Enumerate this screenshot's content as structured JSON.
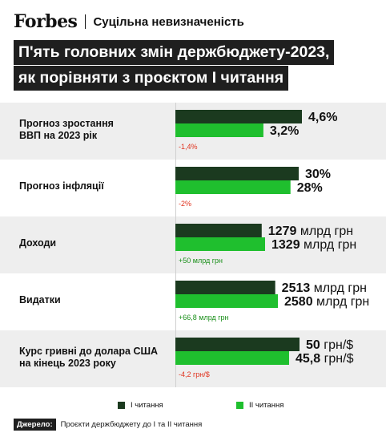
{
  "header": {
    "logo": "Forbes",
    "subtitle": "Суцільна невизначеність"
  },
  "title": {
    "line1": "П'ять головних змін держбюджету-2023,",
    "line2": "як порівняти з проєктом І читання"
  },
  "colors": {
    "series1": "#1b3a1f",
    "series2": "#1fbf2e",
    "diff_negative": "#e0321e",
    "diff_positive": "#1a8f1a"
  },
  "legend": {
    "series1": "І читання",
    "series2": "ІІ читання"
  },
  "source": {
    "tag": "Джерело:",
    "text": "Проєкти держбюджету до І та ІІ читання"
  },
  "chart_data": {
    "type": "bar",
    "orientation": "horizontal",
    "series": [
      {
        "name": "І читання",
        "values": [
          4.6,
          30,
          1279,
          2513,
          50
        ]
      },
      {
        "name": "ІІ читання",
        "values": [
          3.2,
          28,
          1329,
          2580,
          45.8
        ]
      }
    ],
    "categories": [
      {
        "label_lines": [
          "Прогноз зростання",
          "ВВП на 2023 рік"
        ],
        "v1": "4,6%",
        "v2": "3,2%",
        "diff": "-1,4%",
        "diff_sign": "negative"
      },
      {
        "label_lines": [
          "Прогноз інфляції"
        ],
        "v1": "30%",
        "v2": "28%",
        "diff": "-2%",
        "diff_sign": "negative"
      },
      {
        "label_lines": [
          "Доходи"
        ],
        "v1_num": "1279",
        "v1_unit": "млрд грн",
        "v2_num": "1329",
        "v2_unit": "млрд грн",
        "diff": "+50 млрд грн",
        "diff_sign": "positive"
      },
      {
        "label_lines": [
          "Видатки"
        ],
        "v1_num": "2513",
        "v1_unit": "млрд грн",
        "v2_num": "2580",
        "v2_unit": "млрд грн",
        "diff": "+66,8 млрд грн",
        "diff_sign": "positive"
      },
      {
        "label_lines": [
          "Курс гривні до долара США",
          "на кінець 2023 року"
        ],
        "v1_num": "50",
        "v1_unit": "грн/$",
        "v2_num": "45,8",
        "v2_unit": "грн/$",
        "diff": "-4,2 грн/$",
        "diff_sign": "negative"
      }
    ]
  }
}
